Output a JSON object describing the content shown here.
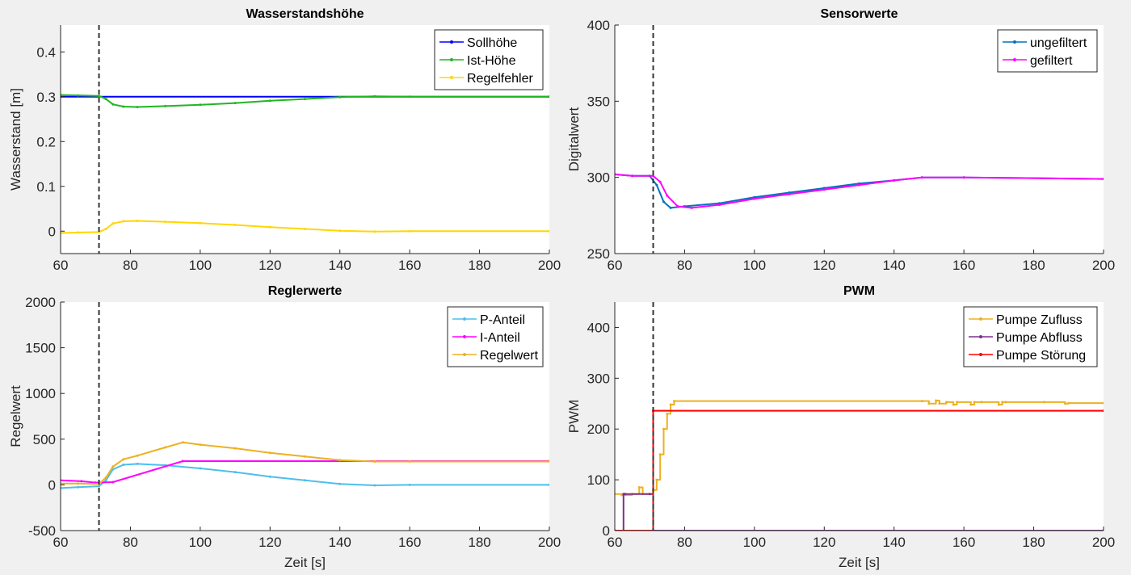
{
  "figure": {
    "background": "#f0f0f0"
  },
  "chart_data": [
    {
      "type": "line",
      "title": "Wasserstandshöhe",
      "xlabel": "",
      "ylabel": "Wasserstand [m]",
      "xlim": [
        60,
        200
      ],
      "ylim": [
        -0.05,
        0.46
      ],
      "xticks": [
        60,
        80,
        100,
        120,
        140,
        160,
        180,
        200
      ],
      "yticks": [
        0,
        0.1,
        0.2,
        0.3,
        0.4
      ],
      "ytick_labels": [
        "0",
        "0.1",
        "0.2",
        "0.3",
        "0.4"
      ],
      "grid": false,
      "legend": "top-right",
      "vline_x": 71,
      "series": [
        {
          "name": "Sollhöhe",
          "color": "#0000ff",
          "step": false,
          "x": [
            60,
            200
          ],
          "y": [
            0.3,
            0.3
          ]
        },
        {
          "name": "Ist-Höhe",
          "color": "#22b522",
          "step": false,
          "x": [
            60,
            65,
            71,
            73,
            75,
            78,
            82,
            90,
            100,
            110,
            120,
            130,
            140,
            150,
            160,
            200
          ],
          "y": [
            0.304,
            0.303,
            0.302,
            0.295,
            0.283,
            0.278,
            0.277,
            0.279,
            0.282,
            0.286,
            0.291,
            0.295,
            0.299,
            0.301,
            0.3,
            0.3
          ]
        },
        {
          "name": "Regelfehler",
          "color": "#ffd700",
          "step": false,
          "x": [
            60,
            65,
            71,
            73,
            75,
            78,
            82,
            90,
            100,
            110,
            120,
            130,
            140,
            150,
            160,
            200
          ],
          "y": [
            -0.004,
            -0.003,
            -0.002,
            0.005,
            0.017,
            0.022,
            0.023,
            0.021,
            0.018,
            0.014,
            0.009,
            0.005,
            0.001,
            -0.001,
            0.0,
            0.0
          ]
        }
      ]
    },
    {
      "type": "line",
      "title": "Sensorwerte",
      "xlabel": "",
      "ylabel": "Digitalwert",
      "xlim": [
        60,
        200
      ],
      "ylim": [
        250,
        400
      ],
      "xticks": [
        60,
        80,
        100,
        120,
        140,
        160,
        180,
        200
      ],
      "yticks": [
        250,
        300,
        350,
        400
      ],
      "ytick_labels": [
        "250",
        "300",
        "350",
        "400"
      ],
      "grid": false,
      "legend": "top-right",
      "vline_x": 71,
      "series": [
        {
          "name": "ungefiltert",
          "color": "#0072bd",
          "step": false,
          "x": [
            60,
            65,
            70,
            72,
            74,
            76,
            80,
            90,
            100,
            110,
            120,
            130,
            140,
            148,
            160,
            200
          ],
          "y": [
            302,
            301,
            301,
            295,
            284,
            280,
            281,
            283,
            287,
            290,
            293,
            296,
            298,
            300,
            300,
            299
          ]
        },
        {
          "name": "gefiltert",
          "color": "#ff00ff",
          "step": false,
          "x": [
            60,
            65,
            71,
            73,
            75,
            78,
            82,
            90,
            100,
            110,
            120,
            130,
            140,
            148,
            160,
            200
          ],
          "y": [
            302,
            301,
            301,
            297,
            288,
            281,
            280,
            282,
            286,
            289,
            292,
            295,
            298,
            300,
            300,
            299
          ]
        }
      ]
    },
    {
      "type": "line",
      "title": "Reglerwerte",
      "xlabel": "Zeit [s]",
      "ylabel": "Regelwert",
      "xlim": [
        60,
        200
      ],
      "ylim": [
        -500,
        2000
      ],
      "xticks": [
        60,
        80,
        100,
        120,
        140,
        160,
        180,
        200
      ],
      "yticks": [
        -500,
        0,
        500,
        1000,
        1500,
        2000
      ],
      "ytick_labels": [
        "-500",
        "0",
        "500",
        "1000",
        "1500",
        "2000"
      ],
      "grid": false,
      "legend": "top-right",
      "vline_x": 71,
      "series": [
        {
          "name": "P-Anteil",
          "color": "#4dbeee",
          "step": false,
          "x": [
            60,
            65,
            71,
            73,
            75,
            78,
            82,
            90,
            100,
            110,
            120,
            130,
            140,
            150,
            160,
            200
          ],
          "y": [
            -35,
            -25,
            -15,
            50,
            170,
            220,
            230,
            215,
            180,
            140,
            90,
            50,
            10,
            -5,
            0,
            0
          ]
        },
        {
          "name": "I-Anteil",
          "color": "#ff00ff",
          "step": false,
          "x": [
            60,
            66,
            70,
            75,
            95,
            200
          ],
          "y": [
            50,
            40,
            25,
            30,
            260,
            260
          ]
        },
        {
          "name": "Regelwert",
          "color": "#edb120",
          "step": false,
          "x": [
            60,
            65,
            71,
            73,
            75,
            78,
            82,
            90,
            95,
            100,
            110,
            120,
            130,
            140,
            150,
            160,
            200
          ],
          "y": [
            15,
            15,
            10,
            80,
            200,
            280,
            320,
            410,
            465,
            440,
            400,
            350,
            310,
            270,
            255,
            255,
            255
          ]
        }
      ]
    },
    {
      "type": "line",
      "title": "PWM",
      "xlabel": "Zeit [s]",
      "ylabel": "PWM",
      "xlim": [
        60,
        200
      ],
      "ylim": [
        0,
        450
      ],
      "xticks": [
        60,
        80,
        100,
        120,
        140,
        160,
        180,
        200
      ],
      "yticks": [
        0,
        100,
        200,
        300,
        400
      ],
      "ytick_labels": [
        "0",
        "100",
        "200",
        "300",
        "400"
      ],
      "grid": false,
      "legend": "top-right",
      "vline_x": 71,
      "series": [
        {
          "name": "Pumpe Zufluss",
          "color": "#edb120",
          "step": true,
          "x": [
            60,
            62,
            65,
            67,
            68,
            71,
            72,
            73,
            74,
            75,
            76,
            77,
            148,
            150,
            152,
            153,
            155,
            157,
            158,
            162,
            163,
            165,
            170,
            171,
            172,
            183,
            189,
            190,
            200
          ],
          "y": [
            72,
            70,
            72,
            85,
            72,
            80,
            100,
            150,
            200,
            230,
            248,
            255,
            255,
            250,
            256,
            250,
            253,
            248,
            253,
            248,
            253,
            253,
            248,
            253,
            253,
            253,
            250,
            251,
            251
          ]
        },
        {
          "name": "Pumpe Abfluss",
          "color": "#7e2f8e",
          "step": true,
          "x": [
            60,
            62.5,
            63,
            70,
            71,
            200
          ],
          "y": [
            0,
            72,
            72,
            72,
            0,
            0
          ]
        },
        {
          "name": "Pumpe Störung",
          "color": "#ff0000",
          "step": true,
          "x": [
            60,
            71,
            200
          ],
          "y": [
            0,
            236,
            236
          ]
        }
      ]
    }
  ]
}
